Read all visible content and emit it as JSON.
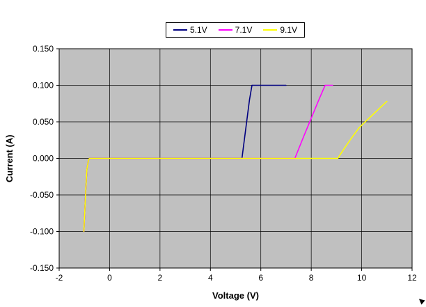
{
  "chart_data": {
    "type": "line",
    "title": "",
    "xlabel": "Voltage (V)",
    "ylabel": "Current (A)",
    "xlim": [
      -2,
      12
    ],
    "ylim": [
      -0.15,
      0.15
    ],
    "xticks": [
      -2,
      0,
      2,
      4,
      6,
      8,
      10,
      12
    ],
    "xtick_labels": [
      "-2",
      "0",
      "2",
      "4",
      "6",
      "8",
      "10",
      "12"
    ],
    "yticks": [
      -0.15,
      -0.1,
      -0.05,
      0,
      0.05,
      0.1,
      0.15
    ],
    "ytick_labels": [
      "-0.150",
      "-0.100",
      "-0.050",
      "0.000",
      "0.050",
      "0.100",
      "0.150"
    ],
    "grid": true,
    "legend_position": "top",
    "plot_bg_color": "#c0c0c0",
    "grid_color": "#000000",
    "axis_color": "#000000",
    "series": [
      {
        "name": "5.1V",
        "color": "#000080",
        "points": [
          [
            -1.02,
            -0.1
          ],
          [
            -0.98,
            -0.07
          ],
          [
            -0.94,
            -0.04
          ],
          [
            -0.9,
            -0.015
          ],
          [
            -0.84,
            -0.003
          ],
          [
            -0.8,
            0.0
          ],
          [
            5.25,
            0.0
          ],
          [
            5.4,
            0.04
          ],
          [
            5.55,
            0.08
          ],
          [
            5.65,
            0.1
          ],
          [
            7.0,
            0.1
          ]
        ]
      },
      {
        "name": "7.1V",
        "color": "#ff00ff",
        "points": [
          [
            -1.02,
            -0.1
          ],
          [
            -0.98,
            -0.07
          ],
          [
            -0.94,
            -0.04
          ],
          [
            -0.9,
            -0.015
          ],
          [
            -0.84,
            -0.003
          ],
          [
            -0.8,
            0.0
          ],
          [
            7.35,
            0.0
          ],
          [
            7.7,
            0.03
          ],
          [
            8.0,
            0.055
          ],
          [
            8.3,
            0.08
          ],
          [
            8.55,
            0.1
          ],
          [
            8.85,
            0.1
          ]
        ]
      },
      {
        "name": "9.1V",
        "color": "#ffff00",
        "points": [
          [
            -1.02,
            -0.1
          ],
          [
            -0.98,
            -0.07
          ],
          [
            -0.94,
            -0.04
          ],
          [
            -0.9,
            -0.015
          ],
          [
            -0.84,
            -0.003
          ],
          [
            -0.8,
            0.0
          ],
          [
            9.05,
            0.0
          ],
          [
            9.3,
            0.013
          ],
          [
            9.6,
            0.028
          ],
          [
            9.9,
            0.042
          ],
          [
            10.2,
            0.052
          ],
          [
            10.6,
            0.065
          ],
          [
            11.0,
            0.078
          ]
        ]
      }
    ]
  }
}
